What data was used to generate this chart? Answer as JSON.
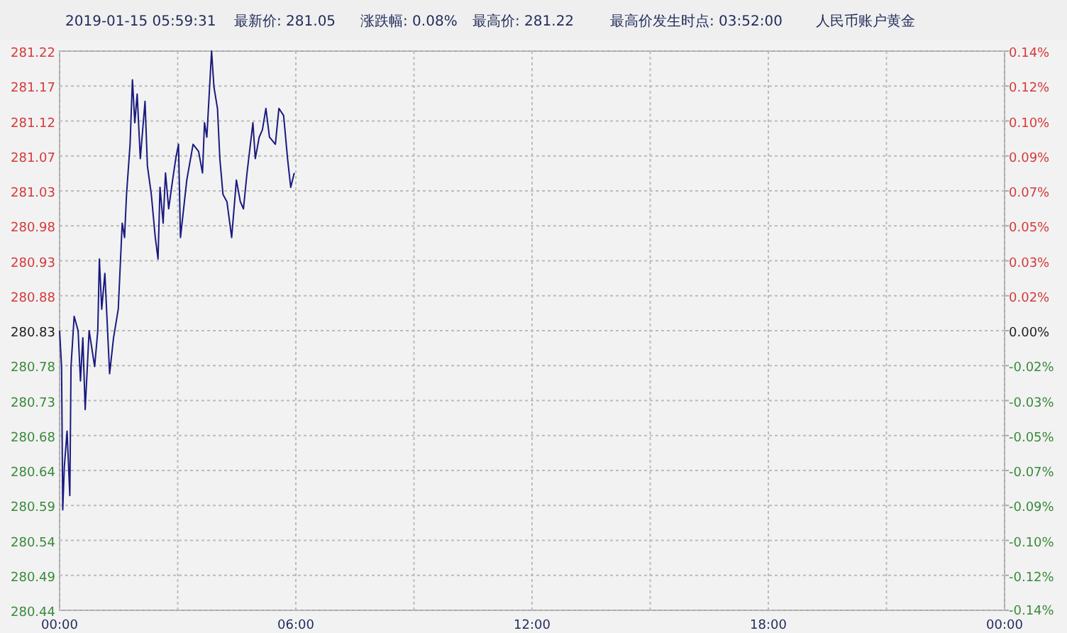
{
  "chart_data": {
    "type": "line",
    "title": "2019-01-15 05:59:31",
    "annotations": [
      "最新价: 281.05",
      "涨跌幅: 0.08%",
      "最高价: 281.22",
      "最高价发生时点: 03:52:00",
      "人民币账户黄金"
    ],
    "x": [
      0,
      0.05,
      0.08,
      0.12,
      0.19,
      0.26,
      0.29,
      0.37,
      0.47,
      0.53,
      0.59,
      0.65,
      0.75,
      0.89,
      0.97,
      1.01,
      1.07,
      1.15,
      1.27,
      1.37,
      1.49,
      1.59,
      1.65,
      1.7,
      1.79,
      1.85,
      1.91,
      1.97,
      2.05,
      2.17,
      2.23,
      2.33,
      2.43,
      2.5,
      2.55,
      2.63,
      2.69,
      2.77,
      2.87,
      2.95,
      3.02,
      3.07,
      3.23,
      3.39,
      3.53,
      3.63,
      3.68,
      3.74,
      3.86,
      3.92,
      4.01,
      4.07,
      4.15,
      4.25,
      4.37,
      4.49,
      4.59,
      4.67,
      4.76,
      4.91,
      4.97,
      5.07,
      5.15,
      5.24,
      5.33,
      5.48,
      5.57,
      5.69,
      5.79,
      5.87,
      5.96
    ],
    "series": [
      {
        "color": "#1a1a80",
        "values": [
          280.83,
          280.78,
          280.58,
          280.64,
          280.69,
          280.6,
          280.78,
          280.85,
          280.83,
          280.76,
          280.82,
          280.72,
          280.83,
          280.78,
          280.83,
          280.93,
          280.86,
          280.91,
          280.77,
          280.82,
          280.86,
          280.98,
          280.96,
          281.02,
          281.09,
          281.18,
          281.12,
          281.16,
          281.07,
          281.15,
          281.06,
          281.02,
          280.96,
          280.93,
          281.03,
          280.98,
          281.05,
          281.0,
          281.04,
          281.07,
          281.09,
          280.96,
          281.04,
          281.09,
          281.08,
          281.05,
          281.12,
          281.1,
          281.22,
          281.17,
          281.14,
          281.07,
          281.02,
          281.01,
          280.96,
          281.04,
          281.01,
          281.0,
          281.05,
          281.12,
          281.07,
          281.1,
          281.11,
          281.14,
          281.1,
          281.09,
          281.14,
          281.13,
          281.07,
          281.03,
          281.05
        ]
      }
    ],
    "xlim": [
      0,
      24
    ],
    "xticks": [
      {
        "value": 0,
        "label": "00:00"
      },
      {
        "value": 3,
        "label": null
      },
      {
        "value": 6,
        "label": "06:00"
      },
      {
        "value": 9,
        "label": null
      },
      {
        "value": 12,
        "label": "12:00"
      },
      {
        "value": 15,
        "label": null
      },
      {
        "value": 18,
        "label": "18:00"
      },
      {
        "value": 21,
        "label": null
      },
      {
        "value": 24,
        "label": "00:00"
      }
    ],
    "ylim": [
      280.44,
      281.22
    ],
    "yticks": [
      {
        "value": 281.22,
        "label": "281.22"
      },
      {
        "value": 281.17125,
        "label": "281.17"
      },
      {
        "value": 281.1225,
        "label": "281.12"
      },
      {
        "value": 281.07375,
        "label": "281.07"
      },
      {
        "value": 281.025,
        "label": "281.03"
      },
      {
        "value": 280.97625,
        "label": "280.98"
      },
      {
        "value": 280.9275,
        "label": "280.93"
      },
      {
        "value": 280.87875,
        "label": "280.88"
      },
      {
        "value": 280.83,
        "label": "280.83"
      },
      {
        "value": 280.78125,
        "label": "280.78"
      },
      {
        "value": 280.7325,
        "label": "280.73"
      },
      {
        "value": 280.68375,
        "label": "280.68"
      },
      {
        "value": 280.635,
        "label": "280.64"
      },
      {
        "value": 280.58625,
        "label": "280.59"
      },
      {
        "value": 280.5375,
        "label": "280.54"
      },
      {
        "value": 280.48875,
        "label": "280.49"
      },
      {
        "value": 280.44,
        "label": "280.44"
      }
    ],
    "y2lim": [
      -0.14,
      0.14
    ],
    "y2ticks": [
      {
        "value": 0.14,
        "label": "0.14%"
      },
      {
        "value": 0.1225,
        "label": "0.12%"
      },
      {
        "value": 0.105,
        "label": "0.10%"
      },
      {
        "value": 0.0875,
        "label": "0.09%"
      },
      {
        "value": 0.07,
        "label": "0.07%"
      },
      {
        "value": 0.0525,
        "label": "0.05%"
      },
      {
        "value": 0.035,
        "label": "0.03%"
      },
      {
        "value": 0.0175,
        "label": "0.02%"
      },
      {
        "value": 0,
        "label": "0.00%"
      },
      {
        "value": -0.0175,
        "label": "-0.02%"
      },
      {
        "value": -0.035,
        "label": "-0.03%"
      },
      {
        "value": -0.0525,
        "label": "-0.05%"
      },
      {
        "value": -0.07,
        "label": "-0.07%"
      },
      {
        "value": -0.0875,
        "label": "-0.09%"
      },
      {
        "value": -0.105,
        "label": "-0.10%"
      },
      {
        "value": -0.1225,
        "label": "-0.12%"
      },
      {
        "value": -0.14,
        "label": "-0.14%"
      }
    ],
    "grid": true
  }
}
